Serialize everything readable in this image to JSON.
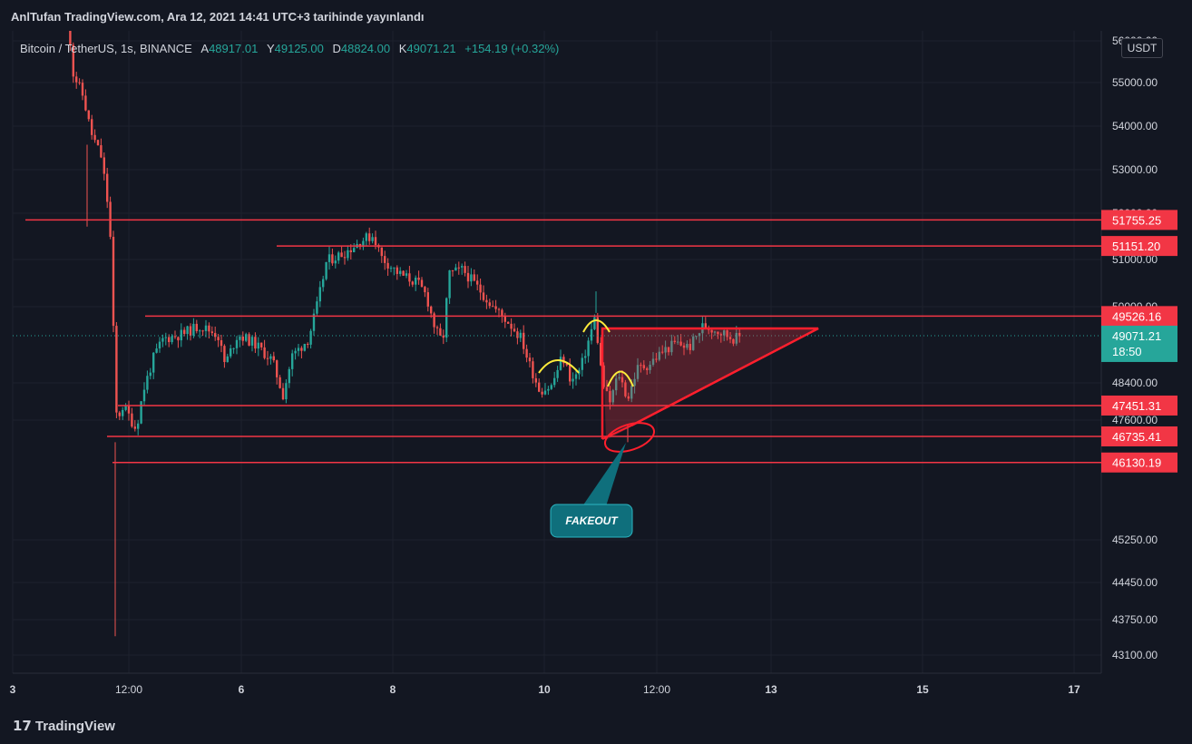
{
  "header": {
    "publish_text": "AnlTufan TradingView.com, Ara 12, 2021 14:41 UTC+3 tarihinde yayınlandı"
  },
  "legend": {
    "symbol": "Bitcoin / TetherUS, 1s, BINANCE",
    "open_label": "A",
    "open": "48917.01",
    "high_label": "Y",
    "high": "49125.00",
    "low_label": "D",
    "low": "48824.00",
    "close_label": "K",
    "close": "49071.21",
    "change": "+154.19 (+0.32%)"
  },
  "currency_label": "USDT",
  "footer": {
    "logo_text": "TradingView"
  },
  "chart_data": {
    "type": "candlestick",
    "symbol": "Bitcoin / TetherUS",
    "interval": "1s",
    "exchange": "BINANCE",
    "y_axis_ticks": [
      "56000.00",
      "55000.00",
      "54000.00",
      "53000.00",
      "52000.00",
      "51000.00",
      "50000.00",
      "48400.00",
      "47600.00",
      "45250.00",
      "44450.00",
      "43750.00",
      "43100.00"
    ],
    "x_axis_ticks": [
      "3",
      "12:00",
      "6",
      "8",
      "10",
      "12:00",
      "13",
      "15",
      "17"
    ],
    "price_lines": [
      {
        "label": "51755.25",
        "value": 51755.25
      },
      {
        "label": "51151.20",
        "value": 51151.2
      },
      {
        "label": "49526.16",
        "value": 49526.16
      },
      {
        "label": "47451.31",
        "value": 47451.31
      },
      {
        "label": "46735.41",
        "value": 46735.41
      },
      {
        "label": "46130.19",
        "value": 46130.19
      }
    ],
    "current_price": {
      "value": "49071.21",
      "countdown": "18:50"
    },
    "annotations": [
      {
        "text": "FAKEOUT"
      }
    ],
    "colors": {
      "up": "#26a69a",
      "down": "#ef5350",
      "level": "#f23645",
      "highlight": "#ffeb3b",
      "callout": "#0f6f7c"
    }
  }
}
